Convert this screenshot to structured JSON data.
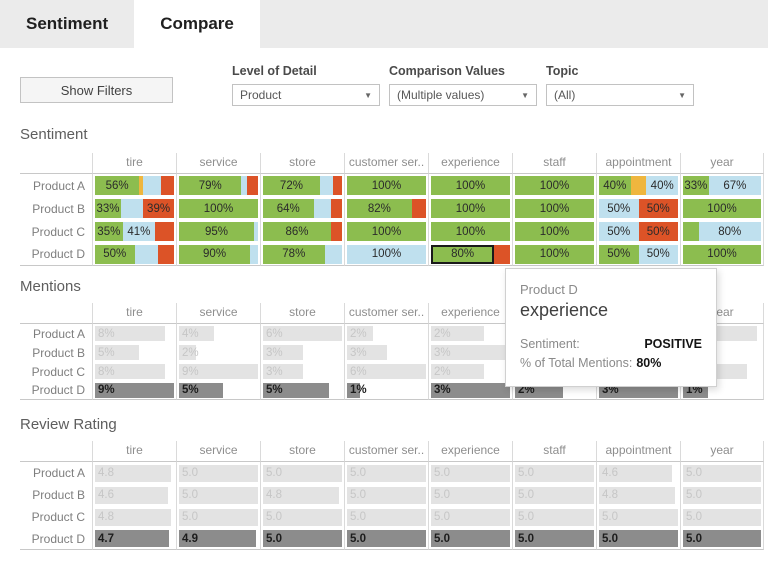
{
  "tabs": [
    {
      "label": "Sentiment",
      "active": false
    },
    {
      "label": "Compare",
      "active": true
    }
  ],
  "filters": {
    "show_filters_label": "Show Filters",
    "dropdowns": [
      {
        "label": "Level of Detail",
        "value": "Product"
      },
      {
        "label": "Comparison Values",
        "value": "(Multiple values)"
      },
      {
        "label": "Topic",
        "value": "(All)"
      }
    ]
  },
  "columns": [
    "tire",
    "service",
    "store",
    "customer ser..",
    "experience",
    "staff",
    "appointment",
    "year"
  ],
  "colors": {
    "green": "#8CBD4F",
    "blue": "#BFE0EE",
    "orange": "#DC5327",
    "amber": "#EFB63E",
    "bar_light": "#E3E3E3",
    "bar_dark": "#8C8C8C"
  },
  "sections": {
    "sentiment": {
      "title": "Sentiment",
      "rows": [
        {
          "label": "Product A",
          "cells": [
            [
              {
                "c": "green",
                "w": 56,
                "t": "56%"
              },
              {
                "c": "amber",
                "w": 5,
                "t": ""
              },
              {
                "c": "blue",
                "w": 22,
                "t": ""
              },
              {
                "c": "orange",
                "w": 17,
                "t": ""
              }
            ],
            [
              {
                "c": "green",
                "w": 79,
                "t": "79%"
              },
              {
                "c": "blue",
                "w": 7,
                "t": ""
              },
              {
                "c": "orange",
                "w": 14,
                "t": ""
              }
            ],
            [
              {
                "c": "green",
                "w": 72,
                "t": "72%"
              },
              {
                "c": "blue",
                "w": 16,
                "t": ""
              },
              {
                "c": "orange",
                "w": 12,
                "t": ""
              }
            ],
            [
              {
                "c": "green",
                "w": 100,
                "t": "100%"
              }
            ],
            [
              {
                "c": "green",
                "w": 100,
                "t": "100%"
              }
            ],
            [
              {
                "c": "green",
                "w": 100,
                "t": "100%"
              }
            ],
            [
              {
                "c": "green",
                "w": 40,
                "t": "40%"
              },
              {
                "c": "amber",
                "w": 20,
                "t": ""
              },
              {
                "c": "blue",
                "w": 40,
                "t": "40%"
              }
            ],
            [
              {
                "c": "green",
                "w": 33,
                "t": "33%"
              },
              {
                "c": "blue",
                "w": 67,
                "t": "67%"
              }
            ]
          ]
        },
        {
          "label": "Product B",
          "cells": [
            [
              {
                "c": "green",
                "w": 33,
                "t": "33%"
              },
              {
                "c": "blue",
                "w": 28,
                "t": ""
              },
              {
                "c": "orange",
                "w": 39,
                "t": "39%"
              }
            ],
            [
              {
                "c": "green",
                "w": 100,
                "t": "100%"
              }
            ],
            [
              {
                "c": "green",
                "w": 64,
                "t": "64%"
              },
              {
                "c": "blue",
                "w": 22,
                "t": ""
              },
              {
                "c": "orange",
                "w": 14,
                "t": ""
              }
            ],
            [
              {
                "c": "green",
                "w": 82,
                "t": "82%"
              },
              {
                "c": "orange",
                "w": 18,
                "t": ""
              }
            ],
            [
              {
                "c": "green",
                "w": 100,
                "t": "100%"
              }
            ],
            [
              {
                "c": "green",
                "w": 100,
                "t": "100%"
              }
            ],
            [
              {
                "c": "blue",
                "w": 50,
                "t": "50%"
              },
              {
                "c": "orange",
                "w": 50,
                "t": "50%"
              }
            ],
            [
              {
                "c": "green",
                "w": 100,
                "t": "100%"
              }
            ]
          ]
        },
        {
          "label": "Product C",
          "cells": [
            [
              {
                "c": "green",
                "w": 35,
                "t": "35%"
              },
              {
                "c": "blue",
                "w": 41,
                "t": "41%"
              },
              {
                "c": "orange",
                "w": 24,
                "t": ""
              }
            ],
            [
              {
                "c": "green",
                "w": 95,
                "t": "95%"
              },
              {
                "c": "blue",
                "w": 5,
                "t": ""
              }
            ],
            [
              {
                "c": "green",
                "w": 86,
                "t": "86%"
              },
              {
                "c": "orange",
                "w": 14,
                "t": ""
              }
            ],
            [
              {
                "c": "green",
                "w": 100,
                "t": "100%"
              }
            ],
            [
              {
                "c": "green",
                "w": 100,
                "t": "100%"
              }
            ],
            [
              {
                "c": "green",
                "w": 100,
                "t": "100%"
              }
            ],
            [
              {
                "c": "blue",
                "w": 50,
                "t": "50%"
              },
              {
                "c": "orange",
                "w": 50,
                "t": "50%"
              }
            ],
            [
              {
                "c": "green",
                "w": 20,
                "t": ""
              },
              {
                "c": "blue",
                "w": 80,
                "t": "80%"
              }
            ]
          ]
        },
        {
          "label": "Product D",
          "cells": [
            [
              {
                "c": "green",
                "w": 50,
                "t": "50%"
              },
              {
                "c": "blue",
                "w": 30,
                "t": ""
              },
              {
                "c": "orange",
                "w": 20,
                "t": ""
              }
            ],
            [
              {
                "c": "green",
                "w": 90,
                "t": "90%"
              },
              {
                "c": "blue",
                "w": 10,
                "t": ""
              }
            ],
            [
              {
                "c": "green",
                "w": 78,
                "t": "78%"
              },
              {
                "c": "blue",
                "w": 22,
                "t": ""
              }
            ],
            [
              {
                "c": "blue",
                "w": 100,
                "t": "100%"
              }
            ],
            [
              {
                "c": "green",
                "w": 80,
                "t": "80%",
                "sel": true
              },
              {
                "c": "orange",
                "w": 20,
                "t": ""
              }
            ],
            [
              {
                "c": "green",
                "w": 100,
                "t": "100%"
              }
            ],
            [
              {
                "c": "green",
                "w": 50,
                "t": "50%"
              },
              {
                "c": "blue",
                "w": 50,
                "t": "50%"
              }
            ],
            [
              {
                "c": "green",
                "w": 100,
                "t": "100%"
              }
            ]
          ]
        }
      ]
    },
    "mentions": {
      "title": "Mentions",
      "rows": [
        {
          "label": "Product A",
          "cells": [
            {
              "t": "8%",
              "w": 89
            },
            {
              "t": "4%",
              "w": 44
            },
            {
              "t": "6%",
              "w": 100
            },
            {
              "t": "2%",
              "w": 33
            },
            {
              "t": "2%",
              "w": 67
            },
            null,
            null,
            {
              "t": "",
              "w": 95
            }
          ]
        },
        {
          "label": "Product B",
          "cells": [
            {
              "t": "5%",
              "w": 56
            },
            {
              "t": "2%",
              "w": 22
            },
            {
              "t": "3%",
              "w": 50
            },
            {
              "t": "3%",
              "w": 50
            },
            {
              "t": "3%",
              "w": 100
            },
            null,
            null,
            null
          ]
        },
        {
          "label": "Product C",
          "cells": [
            {
              "t": "8%",
              "w": 89
            },
            {
              "t": "9%",
              "w": 100
            },
            {
              "t": "3%",
              "w": 50
            },
            {
              "t": "6%",
              "w": 100
            },
            {
              "t": "2%",
              "w": 67
            },
            null,
            null,
            {
              "t": "",
              "w": 82
            }
          ]
        },
        {
          "label": "Product D",
          "dark": true,
          "cells": [
            {
              "t": "9%",
              "w": 100
            },
            {
              "t": "5%",
              "w": 56
            },
            {
              "t": "5%",
              "w": 83
            },
            {
              "t": "1%",
              "w": 17
            },
            {
              "t": "3%",
              "w": 100
            },
            {
              "t": "2%",
              "w": 61
            },
            {
              "t": "3%",
              "w": 100
            },
            {
              "t": "1%",
              "w": 32
            }
          ]
        }
      ]
    },
    "review": {
      "title": "Review Rating",
      "rows": [
        {
          "label": "Product A",
          "cells": [
            {
              "t": "4.8",
              "w": 96
            },
            {
              "t": "5.0",
              "w": 100
            },
            {
              "t": "5.0",
              "w": 100
            },
            {
              "t": "5.0",
              "w": 100
            },
            {
              "t": "5.0",
              "w": 100
            },
            {
              "t": "5.0",
              "w": 100
            },
            {
              "t": "4.6",
              "w": 92
            },
            {
              "t": "5.0",
              "w": 100
            }
          ]
        },
        {
          "label": "Product B",
          "cells": [
            {
              "t": "4.6",
              "w": 92
            },
            {
              "t": "5.0",
              "w": 100
            },
            {
              "t": "4.8",
              "w": 96
            },
            {
              "t": "5.0",
              "w": 100
            },
            {
              "t": "5.0",
              "w": 100
            },
            {
              "t": "5.0",
              "w": 100
            },
            {
              "t": "4.8",
              "w": 96
            },
            {
              "t": "5.0",
              "w": 100
            }
          ]
        },
        {
          "label": "Product C",
          "cells": [
            {
              "t": "4.8",
              "w": 96
            },
            {
              "t": "5.0",
              "w": 100
            },
            {
              "t": "5.0",
              "w": 100
            },
            {
              "t": "5.0",
              "w": 100
            },
            {
              "t": "5.0",
              "w": 100
            },
            {
              "t": "5.0",
              "w": 100
            },
            {
              "t": "5.0",
              "w": 100
            },
            {
              "t": "5.0",
              "w": 100
            }
          ]
        },
        {
          "label": "Product D",
          "dark": true,
          "cells": [
            {
              "t": "4.7",
              "w": 94
            },
            {
              "t": "4.9",
              "w": 98
            },
            {
              "t": "5.0",
              "w": 100
            },
            {
              "t": "5.0",
              "w": 100
            },
            {
              "t": "5.0",
              "w": 100
            },
            {
              "t": "5.0",
              "w": 100
            },
            {
              "t": "5.0",
              "w": 100
            },
            {
              "t": "5.0",
              "w": 100
            }
          ]
        }
      ]
    }
  },
  "tooltip": {
    "product": "Product D",
    "topic": "experience",
    "rows": [
      {
        "label": "Sentiment:",
        "value": "POSITIVE"
      },
      {
        "label": "% of Total Mentions:",
        "value": "80%"
      }
    ]
  }
}
